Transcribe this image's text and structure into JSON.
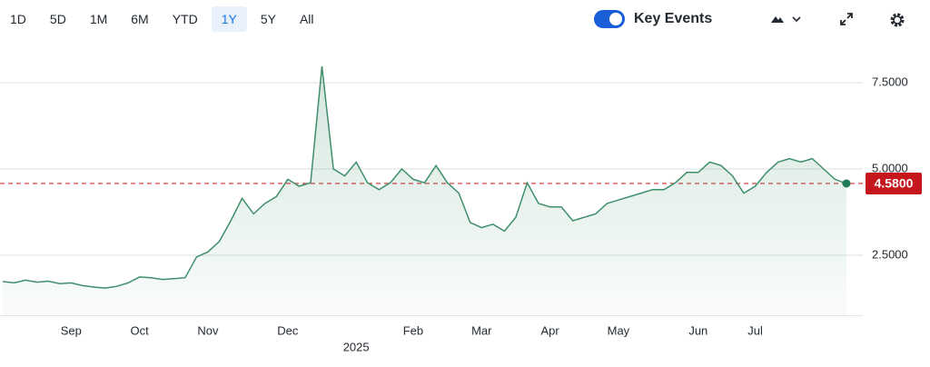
{
  "toolbar": {
    "ranges": [
      "1D",
      "5D",
      "1M",
      "6M",
      "YTD",
      "1Y",
      "5Y",
      "All"
    ],
    "selected": "1Y",
    "toggle_label": "Key Events"
  },
  "chart_data": {
    "type": "line",
    "categories": [
      null,
      null,
      null,
      null,
      null,
      null,
      "Sep",
      null,
      null,
      null,
      null,
      null,
      "Oct",
      null,
      null,
      null,
      null,
      null,
      "Nov",
      null,
      null,
      null,
      null,
      null,
      null,
      "Dec",
      null,
      null,
      null,
      null,
      null,
      "2025",
      null,
      null,
      null,
      null,
      "Feb",
      null,
      null,
      null,
      null,
      null,
      "Mar",
      null,
      null,
      null,
      null,
      null,
      "Apr",
      null,
      null,
      null,
      null,
      null,
      "May",
      null,
      null,
      null,
      null,
      null,
      null,
      "Jun",
      null,
      null,
      null,
      null,
      "Jul",
      null,
      null,
      null,
      null,
      null,
      null,
      null,
      null
    ],
    "values": [
      1.74,
      1.7,
      1.78,
      1.72,
      1.75,
      1.68,
      1.7,
      1.62,
      1.58,
      1.55,
      1.6,
      1.7,
      1.87,
      1.85,
      1.8,
      1.82,
      1.85,
      2.45,
      2.6,
      2.9,
      3.5,
      4.15,
      3.7,
      4.0,
      4.2,
      4.7,
      4.5,
      4.6,
      7.97,
      5.0,
      4.8,
      5.2,
      4.6,
      4.4,
      4.6,
      5.0,
      4.7,
      4.6,
      5.1,
      4.6,
      4.3,
      3.45,
      3.3,
      3.4,
      3.2,
      3.6,
      4.6,
      4.0,
      3.9,
      3.9,
      3.5,
      3.6,
      3.7,
      4.0,
      4.1,
      4.2,
      4.3,
      4.4,
      4.4,
      4.6,
      4.9,
      4.9,
      5.2,
      5.1,
      4.8,
      4.3,
      4.5,
      4.9,
      5.2,
      5.3,
      5.2,
      5.3,
      5.0,
      4.7,
      4.58
    ],
    "color": "#3f8f6b",
    "ylim": [
      0.75,
      8.25
    ],
    "yticks": [
      {
        "value": 2.5,
        "label": "2.5000"
      },
      {
        "value": 5,
        "label": "5.0000"
      },
      {
        "value": 7.5,
        "label": "7.5000"
      }
    ],
    "grid": true,
    "reference_line": {
      "value": 4.58,
      "label": "4.5800",
      "color": "#d9534f"
    }
  }
}
